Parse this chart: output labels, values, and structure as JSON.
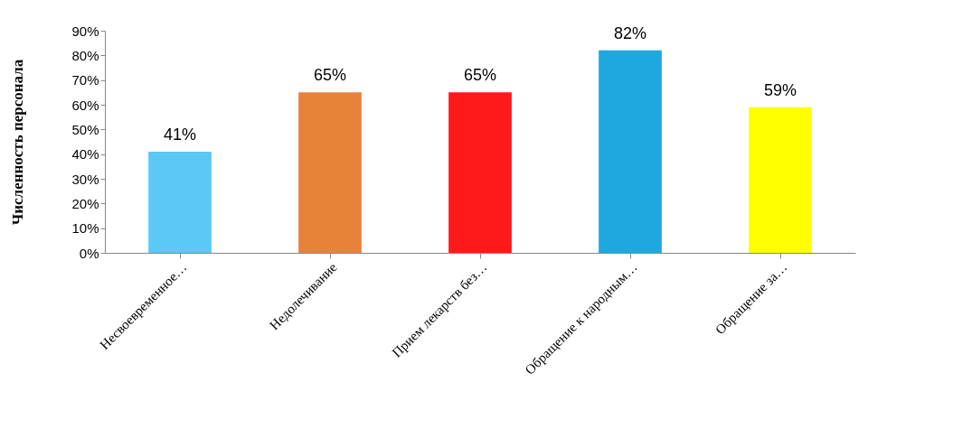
{
  "chart_data": {
    "type": "bar",
    "ylabel": "Численность персонала",
    "categories": [
      "Несвоевременное…",
      "Недолечивание",
      "Прием лекарств без…",
      "Обращение к народным…",
      "Обращение за…"
    ],
    "values": [
      41,
      65,
      65,
      82,
      59
    ],
    "colors": [
      "#5bc8f5",
      "#e8823a",
      "#ff1a1a",
      "#1fa8e0",
      "#ffff00"
    ],
    "value_labels": [
      "41%",
      "65%",
      "65%",
      "82%",
      "59%"
    ],
    "ylim": [
      0,
      90
    ],
    "yticks": [
      {
        "value": 0,
        "label": "0%"
      },
      {
        "value": 10,
        "label": "10%"
      },
      {
        "value": 20,
        "label": "20%"
      },
      {
        "value": 30,
        "label": "30%"
      },
      {
        "value": 40,
        "label": "40%"
      },
      {
        "value": 50,
        "label": "50%"
      },
      {
        "value": 60,
        "label": "60%"
      },
      {
        "value": 70,
        "label": "70%"
      },
      {
        "value": 80,
        "label": "80%"
      },
      {
        "value": 90,
        "label": "90%"
      }
    ],
    "grid": false,
    "legend": false
  }
}
